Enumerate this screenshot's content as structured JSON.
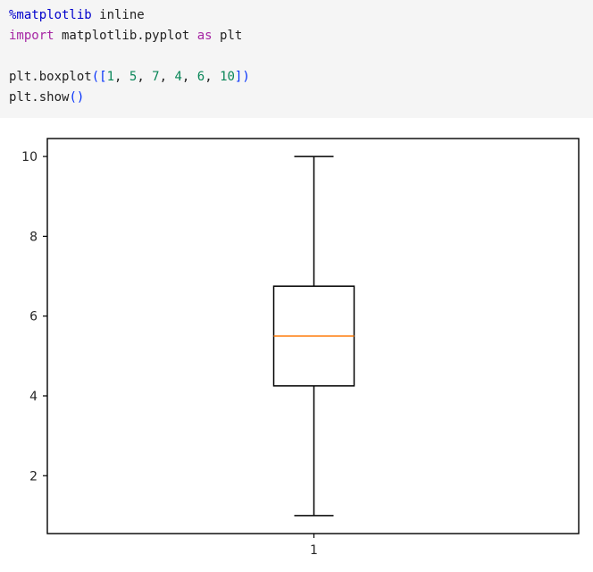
{
  "code_cell": {
    "lines": [
      [
        {
          "text": "%matplotlib",
          "kind": "magic"
        },
        {
          "text": " inline",
          "kind": "text"
        }
      ],
      [
        {
          "text": "import",
          "kind": "keyword"
        },
        {
          "text": " matplotlib.pyplot ",
          "kind": "text"
        },
        {
          "text": "as",
          "kind": "keyword"
        },
        {
          "text": " plt",
          "kind": "text"
        }
      ],
      [],
      [
        {
          "text": "plt.boxplot",
          "kind": "text"
        },
        {
          "text": "([",
          "kind": "paren"
        },
        {
          "text": "1",
          "kind": "number"
        },
        {
          "text": ", ",
          "kind": "text"
        },
        {
          "text": "5",
          "kind": "number"
        },
        {
          "text": ", ",
          "kind": "text"
        },
        {
          "text": "7",
          "kind": "number"
        },
        {
          "text": ", ",
          "kind": "text"
        },
        {
          "text": "4",
          "kind": "number"
        },
        {
          "text": ", ",
          "kind": "text"
        },
        {
          "text": "6",
          "kind": "number"
        },
        {
          "text": ", ",
          "kind": "text"
        },
        {
          "text": "10",
          "kind": "number"
        },
        {
          "text": "])",
          "kind": "paren"
        }
      ],
      [
        {
          "text": "plt.show",
          "kind": "text"
        },
        {
          "text": "()",
          "kind": "paren"
        }
      ]
    ]
  },
  "chart_data": {
    "type": "boxplot",
    "title": "",
    "xlabel": "",
    "ylabel": "",
    "categories": [
      "1"
    ],
    "data": [
      1,
      5,
      7,
      4,
      6,
      10
    ],
    "stats": {
      "min": 1,
      "q1": 4.25,
      "median": 5.5,
      "q3": 6.75,
      "max": 10
    },
    "ylim": [
      0.55,
      10.45
    ],
    "yticks": [
      2,
      4,
      6,
      8,
      10
    ],
    "grid": false,
    "colors": {
      "box": "#000000",
      "median": "#ff7f0e",
      "axes": "#000000",
      "text": "#262626"
    }
  }
}
